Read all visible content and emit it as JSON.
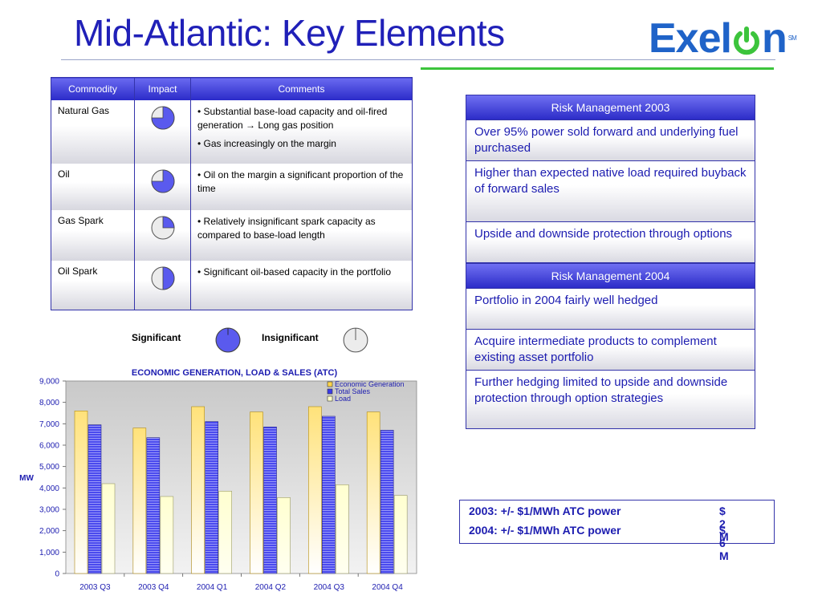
{
  "title": "Mid-Atlantic: Key Elements",
  "logo": {
    "left": "Exel",
    "right": "n",
    "sm": "SM",
    "brand_color": "#1f63c8",
    "accent_color": "#3cc43c"
  },
  "commodity_table": {
    "headers": [
      "Commodity",
      "Impact",
      "Comments"
    ],
    "rows": [
      {
        "commodity": "Natural Gas",
        "impact": 0.75,
        "comments": [
          "•  Substantial base-load capacity and oil-fired generation → Long gas position",
          "•  Gas increasingly on the margin"
        ]
      },
      {
        "commodity": "Oil",
        "impact": 0.75,
        "comments": [
          "•  Oil on the margin a significant proportion of the time"
        ]
      },
      {
        "commodity": "Gas Spark",
        "impact": 0.25,
        "comments": [
          "• Relatively insignificant spark capacity as compared to base-load length"
        ]
      },
      {
        "commodity": "Oil Spark",
        "impact": 0.5,
        "comments": [
          "• Significant oil-based capacity in the portfolio"
        ]
      }
    ]
  },
  "impact_legend": {
    "significant": "Significant",
    "insignificant": "Insignificant"
  },
  "risk_2003": {
    "header": "Risk Management 2003",
    "items": [
      "Over 95% power sold forward and underlying fuel purchased",
      "Higher than expected native load required buyback of forward sales",
      "Upside and downside protection through options"
    ]
  },
  "risk_2004": {
    "header": "Risk Management 2004",
    "items": [
      "Portfolio in 2004 fairly well hedged",
      "Acquire intermediate products to complement existing asset portfolio",
      "Further hedging limited to upside and downside protection through option strategies"
    ]
  },
  "atc": {
    "rows": [
      {
        "label": "2003: +/-  $1/MWh ATC power",
        "value": "$ 2 M"
      },
      {
        "label": "2004: +/-  $1/MWh ATC power",
        "value": "$ 6 M"
      }
    ]
  },
  "chart_data": {
    "type": "bar",
    "title": "ECONOMIC GENERATION, LOAD & SALES (ATC)",
    "xlabel": "",
    "ylabel": "MW",
    "categories": [
      "2003 Q3",
      "2003 Q4",
      "2004 Q1",
      "2004 Q2",
      "2004 Q3",
      "2004 Q4"
    ],
    "series": [
      {
        "name": "Economic Generation",
        "values": [
          7600,
          6800,
          7800,
          7550,
          7800,
          7550
        ],
        "color": "#ffc830"
      },
      {
        "name": "Total Sales",
        "values": [
          6950,
          6350,
          7100,
          6850,
          7350,
          6700
        ],
        "color": "#3a3ae8"
      },
      {
        "name": "Load",
        "values": [
          4200,
          3600,
          3850,
          3550,
          4150,
          3650
        ],
        "color": "#ffffc8"
      }
    ],
    "ylim": [
      0,
      9000
    ],
    "yticks": [
      "0",
      "1,000",
      "2,000",
      "3,000",
      "4,000",
      "5,000",
      "6,000",
      "7,000",
      "8,000",
      "9,000"
    ],
    "grid": false,
    "legend": "top-right"
  }
}
